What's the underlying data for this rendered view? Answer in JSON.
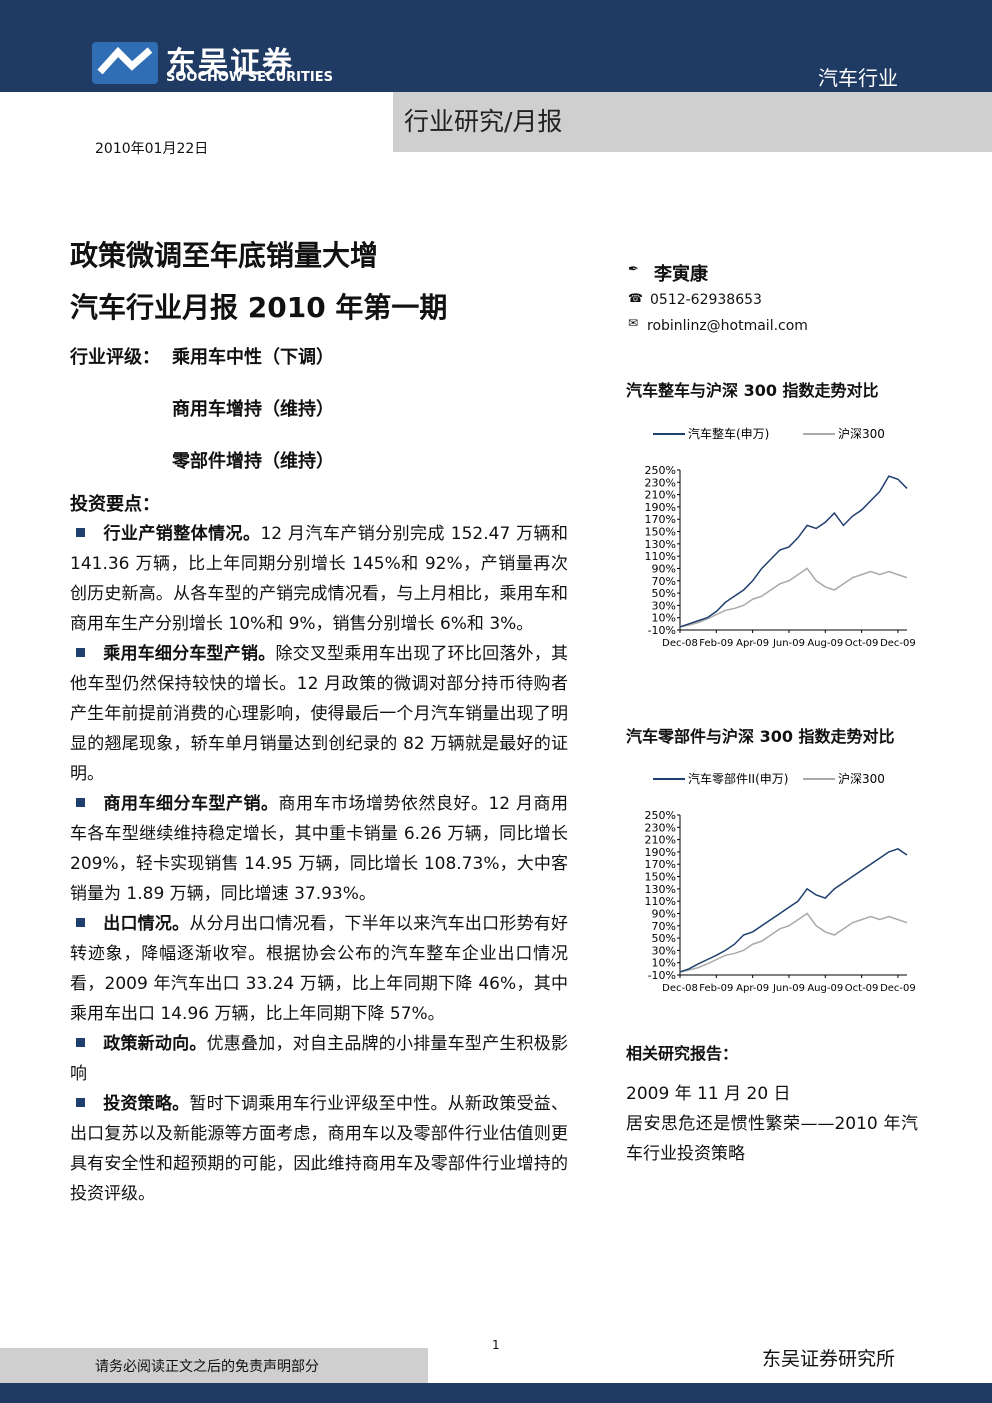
{
  "header": {
    "logo_cn": "东吴证券",
    "logo_en": "SOOCHOW SECURITIES",
    "sector": "汽车行业",
    "report_type": "行业研究/月报",
    "date": "2010年01月22日"
  },
  "title": [
    "政策微调至年底销量大增",
    "汽车行业月报 2010 年第一期"
  ],
  "rating": {
    "label": "行业评级：",
    "items": [
      "乘用车中性（下调）",
      "商用车增持（维持）",
      "零部件增持（维持）"
    ]
  },
  "key_points": {
    "heading": "投资要点：",
    "items": [
      {
        "heading": "行业产销整体情况。",
        "text": "12 月汽车产销分别完成 152.47 万辆和 141.36 万辆，比上年同期分别增长 145%和 92%，产销量再次创历史新高。从各车型的产销完成情况看，与上月相比，乘用车和商用车生产分别增长 10%和 9%，销售分别增长 6%和 3%。"
      },
      {
        "heading": "乘用车细分车型产销。",
        "text": "除交叉型乘用车出现了环比回落外，其他车型仍然保持较快的增长。12 月政策的微调对部分持币待购者产生年前提前消费的心理影响，使得最后一个月汽车销量出现了明显的翘尾现象，轿车单月销量达到创纪录的 82 万辆就是最好的证明。"
      },
      {
        "heading": "商用车细分车型产销。",
        "text": "商用车市场增势依然良好。12 月商用车各车型继续维持稳定增长，其中重卡销量 6.26 万辆，同比增长 209%，轻卡实现销售 14.95 万辆，同比增长 108.73%，大中客销量为 1.89 万辆，同比增速 37.93%。"
      },
      {
        "heading": "出口情况。",
        "text": "从分月出口情况看，下半年以来汽车出口形势有好转迹象，降幅逐渐收窄。根据协会公布的汽车整车企业出口情况看，2009 年汽车出口 33.24 万辆，比上年同期下降 46%，其中乘用车出口 14.96 万辆，比上年同期下降 57%。"
      },
      {
        "heading": "政策新动向。",
        "text": "优惠叠加，对自主品牌的小排量车型产生积极影响"
      },
      {
        "heading": "投资策略。",
        "text": "暂时下调乘用车行业评级至中性。从新政策受益、出口复苏以及新能源等方面考虑，商用车以及零部件行业估值则更具有安全性和超预期的可能，因此维持商用车及零部件行业增持的投资评级。"
      }
    ]
  },
  "author": {
    "name": "李寅康",
    "phone": "0512-62938653",
    "email": "robinlinz@hotmail.com"
  },
  "chart_data": [
    {
      "type": "line",
      "title": "汽车整车与沪深 300 指数走势对比",
      "categories": [
        "Dec-08",
        null,
        null,
        null,
        "Feb-09",
        null,
        null,
        null,
        "Apr-09",
        null,
        null,
        null,
        "Jun-09",
        null,
        null,
        null,
        "Aug-09",
        null,
        null,
        null,
        "Oct-09",
        null,
        null,
        null,
        "Dec-09",
        null
      ],
      "series": [
        {
          "name": "汽车整车(申万)",
          "color": "#1f3f6e",
          "values": [
            -5,
            0,
            5,
            10,
            20,
            35,
            45,
            55,
            70,
            90,
            105,
            120,
            125,
            140,
            160,
            155,
            165,
            180,
            160,
            175,
            185,
            200,
            215,
            240,
            235,
            220
          ]
        },
        {
          "name": "沪深300",
          "color": "#aaaaaa",
          "values": [
            -5,
            -2,
            2,
            8,
            15,
            22,
            25,
            30,
            40,
            45,
            55,
            65,
            70,
            80,
            90,
            70,
            60,
            55,
            65,
            75,
            80,
            85,
            80,
            85,
            80,
            75
          ]
        }
      ],
      "ylim": [
        -10,
        250
      ],
      "yticks": [
        {
          "value": -10,
          "label": "-10%"
        },
        {
          "value": 10,
          "label": "10%"
        },
        {
          "value": 30,
          "label": "30%"
        },
        {
          "value": 50,
          "label": "50%"
        },
        {
          "value": 70,
          "label": "70%"
        },
        {
          "value": 90,
          "label": "90%"
        },
        {
          "value": 110,
          "label": "110%"
        },
        {
          "value": 130,
          "label": "130%"
        },
        {
          "value": 150,
          "label": "150%"
        },
        {
          "value": 170,
          "label": "170%"
        },
        {
          "value": 190,
          "label": "190%"
        },
        {
          "value": 210,
          "label": "210%"
        },
        {
          "value": 230,
          "label": "230%"
        },
        {
          "value": 250,
          "label": "250%"
        }
      ]
    },
    {
      "type": "line",
      "title": "汽车零部件与沪深 300 指数走势对比",
      "categories": [
        "Dec-08",
        null,
        null,
        null,
        "Feb-09",
        null,
        null,
        null,
        "Apr-09",
        null,
        null,
        null,
        "Jun-09",
        null,
        null,
        null,
        "Aug-09",
        null,
        null,
        null,
        "Oct-09",
        null,
        null,
        null,
        "Dec-09",
        null
      ],
      "series": [
        {
          "name": "汽车零部件II(申万)",
          "color": "#1f3f6e",
          "values": [
            -5,
            0,
            8,
            15,
            22,
            30,
            40,
            55,
            60,
            70,
            80,
            90,
            100,
            110,
            130,
            120,
            115,
            130,
            140,
            150,
            160,
            170,
            180,
            190,
            195,
            185
          ]
        },
        {
          "name": "沪深300",
          "color": "#aaaaaa",
          "values": [
            -5,
            -2,
            2,
            8,
            15,
            22,
            25,
            30,
            40,
            45,
            55,
            65,
            70,
            80,
            90,
            70,
            60,
            55,
            65,
            75,
            80,
            85,
            80,
            85,
            80,
            75
          ]
        }
      ],
      "ylim": [
        -10,
        250
      ],
      "yticks": [
        {
          "value": -10,
          "label": "-10%"
        },
        {
          "value": 10,
          "label": "10%"
        },
        {
          "value": 30,
          "label": "30%"
        },
        {
          "value": 50,
          "label": "50%"
        },
        {
          "value": 70,
          "label": "70%"
        },
        {
          "value": 90,
          "label": "90%"
        },
        {
          "value": 110,
          "label": "110%"
        },
        {
          "value": 130,
          "label": "130%"
        },
        {
          "value": 150,
          "label": "150%"
        },
        {
          "value": 170,
          "label": "170%"
        },
        {
          "value": 190,
          "label": "190%"
        },
        {
          "value": 210,
          "label": "210%"
        },
        {
          "value": 230,
          "label": "230%"
        },
        {
          "value": 250,
          "label": "250%"
        }
      ]
    }
  ],
  "related": {
    "heading": "相关研究报告：",
    "date": "2009 年 11 月 20 日",
    "title": "居安思危还是惯性繁荣——2010 年汽车行业投资策略"
  },
  "footer": {
    "disclaimer": "请务必阅读正文之后的免责声明部分",
    "page": 1,
    "org": "东吴证券研究所"
  }
}
